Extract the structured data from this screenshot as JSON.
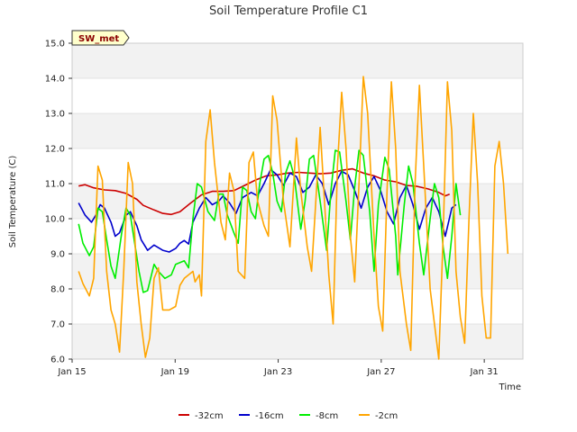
{
  "chart_data": {
    "type": "line",
    "title": "Soil Temperature Profile C1",
    "xlabel": "Time",
    "ylabel": "Soil Temperature (C)",
    "badge": "SW_met",
    "ylim": [
      6.0,
      15.0
    ],
    "xlim_days": [
      0,
      17.5
    ],
    "y_ticks": [
      "6.0",
      "7.0",
      "8.0",
      "9.0",
      "10.0",
      "11.0",
      "12.0",
      "13.0",
      "14.0",
      "15.0"
    ],
    "x_ticks": [
      {
        "label": "Jan 15",
        "day": 0
      },
      {
        "label": "Jan 19",
        "day": 4
      },
      {
        "label": "Jan 23",
        "day": 8
      },
      {
        "label": "Jan 27",
        "day": 12
      },
      {
        "label": "Jan 31",
        "day": 16
      }
    ],
    "grid": true,
    "legend_position": "bottom",
    "colors": {
      "band": "#f2f2f2",
      "grid": "#dddddd",
      "badge_bg": "#ffffcc"
    },
    "series": [
      {
        "name": "-32cm",
        "color": "#cc0000",
        "points": [
          [
            0.3,
            10.93
          ],
          [
            0.6,
            10.97
          ],
          [
            1.0,
            10.88
          ],
          [
            1.5,
            10.82
          ],
          [
            2.0,
            10.8
          ],
          [
            2.5,
            10.72
          ],
          [
            3.0,
            10.55
          ],
          [
            3.3,
            10.38
          ],
          [
            3.8,
            10.25
          ],
          [
            4.2,
            10.15
          ],
          [
            4.6,
            10.12
          ],
          [
            5.0,
            10.2
          ],
          [
            5.5,
            10.45
          ],
          [
            6.0,
            10.68
          ],
          [
            6.5,
            10.78
          ],
          [
            7.0,
            10.78
          ],
          [
            7.5,
            10.8
          ],
          [
            8.0,
            10.95
          ],
          [
            8.5,
            11.1
          ],
          [
            9.0,
            11.22
          ],
          [
            9.5,
            11.25
          ],
          [
            10.0,
            11.3
          ],
          [
            10.5,
            11.32
          ],
          [
            11.0,
            11.3
          ],
          [
            11.5,
            11.28
          ],
          [
            12.0,
            11.3
          ],
          [
            12.5,
            11.38
          ],
          [
            13.0,
            11.42
          ],
          [
            13.5,
            11.3
          ],
          [
            14.0,
            11.22
          ],
          [
            14.5,
            11.1
          ],
          [
            15.0,
            11.05
          ],
          [
            15.5,
            10.95
          ],
          [
            16.0,
            10.92
          ],
          [
            16.5,
            10.85
          ],
          [
            17.0,
            10.75
          ],
          [
            17.3,
            10.65
          ],
          [
            17.5,
            10.7
          ]
        ]
      },
      {
        "name": "-16cm",
        "color": "#0000cc",
        "points": [
          [
            0.3,
            10.45
          ],
          [
            0.6,
            10.1
          ],
          [
            0.9,
            9.9
          ],
          [
            1.1,
            10.1
          ],
          [
            1.3,
            10.4
          ],
          [
            1.5,
            10.3
          ],
          [
            1.8,
            9.9
          ],
          [
            2.0,
            9.5
          ],
          [
            2.2,
            9.6
          ],
          [
            2.5,
            10.1
          ],
          [
            2.7,
            10.2
          ],
          [
            3.0,
            9.8
          ],
          [
            3.2,
            9.4
          ],
          [
            3.5,
            9.1
          ],
          [
            3.8,
            9.25
          ],
          [
            4.2,
            9.1
          ],
          [
            4.5,
            9.05
          ],
          [
            4.8,
            9.15
          ],
          [
            5.0,
            9.3
          ],
          [
            5.2,
            9.38
          ],
          [
            5.4,
            9.28
          ],
          [
            5.6,
            9.9
          ],
          [
            5.9,
            10.3
          ],
          [
            6.2,
            10.6
          ],
          [
            6.5,
            10.4
          ],
          [
            6.8,
            10.5
          ],
          [
            7.0,
            10.65
          ],
          [
            7.3,
            10.45
          ],
          [
            7.6,
            10.15
          ],
          [
            7.9,
            10.6
          ],
          [
            8.3,
            10.75
          ],
          [
            8.6,
            10.65
          ],
          [
            8.9,
            11.0
          ],
          [
            9.2,
            11.4
          ],
          [
            9.5,
            11.25
          ],
          [
            9.8,
            10.95
          ],
          [
            10.1,
            11.3
          ],
          [
            10.4,
            11.2
          ],
          [
            10.7,
            10.75
          ],
          [
            11.0,
            10.9
          ],
          [
            11.3,
            11.25
          ],
          [
            11.6,
            11.0
          ],
          [
            11.9,
            10.4
          ],
          [
            12.2,
            11.0
          ],
          [
            12.5,
            11.35
          ],
          [
            12.8,
            11.25
          ],
          [
            13.1,
            10.8
          ],
          [
            13.4,
            10.3
          ],
          [
            13.7,
            10.9
          ],
          [
            14.0,
            11.2
          ],
          [
            14.3,
            10.8
          ],
          [
            14.6,
            10.2
          ],
          [
            14.9,
            9.85
          ],
          [
            15.2,
            10.6
          ],
          [
            15.5,
            10.95
          ],
          [
            15.8,
            10.4
          ],
          [
            16.1,
            9.7
          ],
          [
            16.4,
            10.3
          ],
          [
            16.7,
            10.6
          ],
          [
            17.0,
            10.2
          ],
          [
            17.3,
            9.5
          ],
          [
            17.6,
            10.3
          ],
          [
            17.8,
            10.4
          ]
        ]
      },
      {
        "name": "-8cm",
        "color": "#00ee00",
        "points": [
          [
            0.3,
            9.85
          ],
          [
            0.5,
            9.3
          ],
          [
            0.8,
            8.95
          ],
          [
            1.0,
            9.2
          ],
          [
            1.2,
            10.3
          ],
          [
            1.4,
            10.2
          ],
          [
            1.6,
            9.4
          ],
          [
            1.8,
            8.65
          ],
          [
            2.0,
            8.3
          ],
          [
            2.3,
            9.6
          ],
          [
            2.5,
            10.3
          ],
          [
            2.7,
            10.1
          ],
          [
            2.9,
            9.3
          ],
          [
            3.1,
            8.5
          ],
          [
            3.3,
            7.9
          ],
          [
            3.5,
            7.95
          ],
          [
            3.8,
            8.7
          ],
          [
            4.0,
            8.5
          ],
          [
            4.3,
            8.3
          ],
          [
            4.6,
            8.4
          ],
          [
            4.8,
            8.7
          ],
          [
            5.0,
            8.75
          ],
          [
            5.2,
            8.8
          ],
          [
            5.4,
            8.6
          ],
          [
            5.6,
            10.0
          ],
          [
            5.8,
            11.0
          ],
          [
            6.0,
            10.9
          ],
          [
            6.3,
            10.2
          ],
          [
            6.6,
            9.95
          ],
          [
            6.8,
            10.7
          ],
          [
            7.0,
            10.7
          ],
          [
            7.2,
            10.1
          ],
          [
            7.5,
            9.6
          ],
          [
            7.7,
            9.3
          ],
          [
            7.9,
            10.9
          ],
          [
            8.1,
            10.8
          ],
          [
            8.3,
            10.2
          ],
          [
            8.5,
            10.0
          ],
          [
            8.7,
            11.0
          ],
          [
            8.9,
            11.7
          ],
          [
            9.1,
            11.8
          ],
          [
            9.3,
            11.3
          ],
          [
            9.5,
            10.5
          ],
          [
            9.7,
            10.2
          ],
          [
            9.9,
            11.3
          ],
          [
            10.1,
            11.65
          ],
          [
            10.3,
            11.2
          ],
          [
            10.6,
            9.7
          ],
          [
            10.8,
            10.5
          ],
          [
            11.0,
            11.7
          ],
          [
            11.2,
            11.8
          ],
          [
            11.5,
            10.5
          ],
          [
            11.8,
            9.1
          ],
          [
            12.0,
            10.8
          ],
          [
            12.2,
            11.95
          ],
          [
            12.4,
            11.9
          ],
          [
            12.7,
            10.5
          ],
          [
            12.9,
            9.4
          ],
          [
            13.1,
            10.9
          ],
          [
            13.3,
            11.95
          ],
          [
            13.5,
            11.8
          ],
          [
            13.8,
            10.2
          ],
          [
            14.0,
            8.5
          ],
          [
            14.2,
            10.4
          ],
          [
            14.5,
            11.75
          ],
          [
            14.7,
            11.4
          ],
          [
            15.0,
            9.5
          ],
          [
            15.1,
            8.4
          ],
          [
            15.4,
            10.4
          ],
          [
            15.6,
            11.5
          ],
          [
            15.8,
            11.0
          ],
          [
            16.1,
            9.3
          ],
          [
            16.3,
            8.4
          ],
          [
            16.6,
            10.0
          ],
          [
            16.8,
            11.0
          ],
          [
            17.0,
            10.6
          ],
          [
            17.2,
            9.2
          ],
          [
            17.4,
            8.3
          ],
          [
            17.6,
            9.5
          ],
          [
            17.8,
            11.0
          ],
          [
            18.0,
            10.1
          ]
        ]
      },
      {
        "name": "-2cm",
        "color": "#ffa500",
        "points": [
          [
            0.3,
            8.5
          ],
          [
            0.5,
            8.15
          ],
          [
            0.8,
            7.8
          ],
          [
            1.0,
            8.3
          ],
          [
            1.2,
            11.5
          ],
          [
            1.4,
            11.1
          ],
          [
            1.6,
            8.5
          ],
          [
            1.8,
            7.4
          ],
          [
            2.0,
            7.0
          ],
          [
            2.2,
            6.2
          ],
          [
            2.4,
            8.6
          ],
          [
            2.6,
            11.6
          ],
          [
            2.8,
            11.0
          ],
          [
            3.0,
            8.2
          ],
          [
            3.2,
            7.0
          ],
          [
            3.4,
            6.05
          ],
          [
            3.6,
            6.6
          ],
          [
            3.8,
            8.3
          ],
          [
            4.0,
            8.6
          ],
          [
            4.2,
            7.4
          ],
          [
            4.5,
            7.4
          ],
          [
            4.8,
            7.5
          ],
          [
            5.0,
            8.1
          ],
          [
            5.2,
            8.3
          ],
          [
            5.4,
            8.4
          ],
          [
            5.6,
            8.5
          ],
          [
            5.7,
            8.2
          ],
          [
            5.9,
            8.4
          ],
          [
            6.0,
            7.8
          ],
          [
            6.2,
            12.2
          ],
          [
            6.4,
            13.1
          ],
          [
            6.6,
            11.6
          ],
          [
            6.9,
            9.9
          ],
          [
            7.1,
            9.4
          ],
          [
            7.3,
            11.3
          ],
          [
            7.5,
            10.8
          ],
          [
            7.7,
            8.5
          ],
          [
            8.0,
            8.3
          ],
          [
            8.2,
            11.6
          ],
          [
            8.4,
            11.9
          ],
          [
            8.6,
            10.5
          ],
          [
            8.9,
            9.8
          ],
          [
            9.1,
            9.5
          ],
          [
            9.3,
            13.5
          ],
          [
            9.5,
            12.8
          ],
          [
            9.8,
            10.5
          ],
          [
            10.1,
            9.2
          ],
          [
            10.4,
            12.3
          ],
          [
            10.6,
            10.8
          ],
          [
            10.9,
            9.2
          ],
          [
            11.1,
            8.5
          ],
          [
            11.3,
            10.5
          ],
          [
            11.5,
            12.6
          ],
          [
            11.7,
            10.5
          ],
          [
            11.9,
            8.4
          ],
          [
            12.1,
            7.0
          ],
          [
            12.3,
            11.5
          ],
          [
            12.5,
            13.6
          ],
          [
            12.7,
            12.0
          ],
          [
            12.9,
            9.5
          ],
          [
            13.1,
            8.2
          ],
          [
            13.3,
            11.0
          ],
          [
            13.5,
            14.05
          ],
          [
            13.7,
            13.0
          ],
          [
            14.0,
            9.5
          ],
          [
            14.2,
            7.5
          ],
          [
            14.4,
            6.8
          ],
          [
            14.6,
            10.8
          ],
          [
            14.8,
            13.9
          ],
          [
            15.0,
            12.0
          ],
          [
            15.2,
            8.5
          ],
          [
            15.5,
            7.0
          ],
          [
            15.7,
            6.25
          ],
          [
            15.9,
            11.0
          ],
          [
            16.1,
            13.8
          ],
          [
            16.3,
            11.5
          ],
          [
            16.6,
            8.0
          ],
          [
            16.8,
            7.0
          ],
          [
            17.0,
            6.0
          ],
          [
            17.2,
            9.5
          ],
          [
            17.4,
            13.9
          ],
          [
            17.6,
            12.5
          ],
          [
            17.8,
            8.5
          ],
          [
            18.0,
            7.2
          ],
          [
            18.2,
            6.45
          ],
          [
            18.4,
            10.0
          ],
          [
            18.6,
            13.0
          ],
          [
            18.8,
            11.0
          ],
          [
            19.0,
            7.8
          ],
          [
            19.2,
            6.6
          ],
          [
            19.4,
            6.6
          ],
          [
            19.6,
            11.5
          ],
          [
            19.8,
            12.2
          ],
          [
            20.0,
            11.0
          ],
          [
            20.2,
            9.0
          ]
        ]
      }
    ]
  }
}
